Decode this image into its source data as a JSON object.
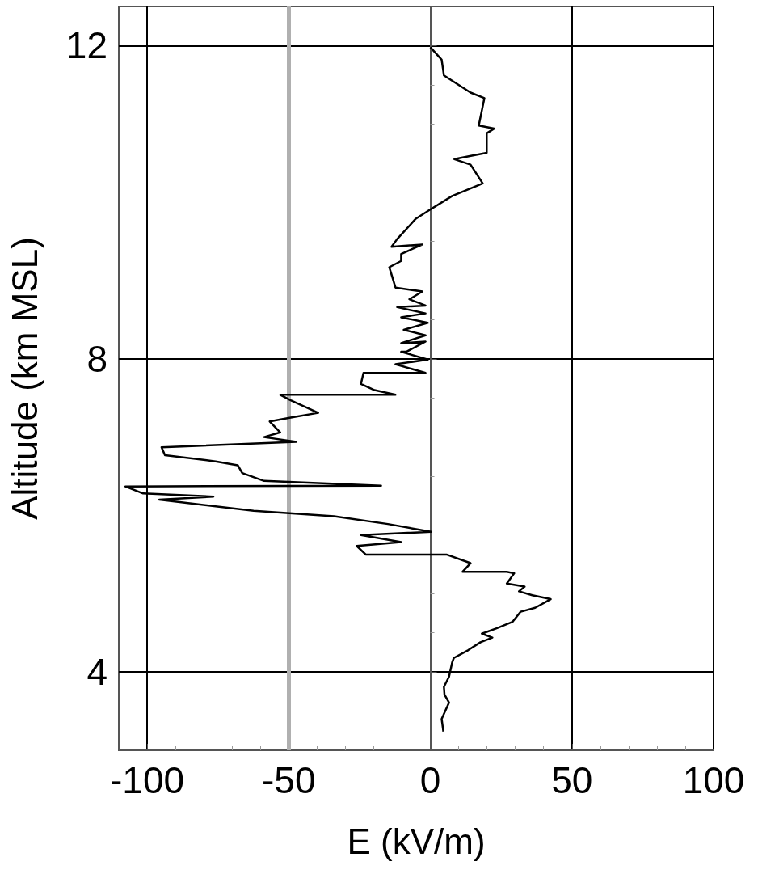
{
  "chart_data": {
    "type": "line",
    "xlabel": "E (kV/m)",
    "ylabel": "Altitude (km MSL)",
    "xlim": [
      -110,
      100
    ],
    "xticks": [
      -100,
      -50,
      0,
      50,
      100
    ],
    "ylim": [
      3,
      12.5
    ],
    "yticks": [
      4,
      8,
      12
    ],
    "grid": true,
    "marker": "none",
    "line_style": "solid",
    "ref_lines": [
      {
        "axis": "x",
        "value": -50,
        "color": "#b0b0b0"
      }
    ],
    "series": [
      {
        "color": "#000000",
        "x": [
          4.6,
          4,
          6.6,
          5,
          4.8,
          6.6,
          7.7,
          8.3,
          13.4,
          17.7,
          21.9,
          18.2,
          23.6,
          29,
          31.9,
          37,
          42.5,
          36,
          31.3,
          33.3,
          27,
          29.6,
          27,
          11.4,
          14.2,
          5.7,
          -22.8,
          -26,
          -10.3,
          -24.5,
          0.3,
          -15,
          -34,
          -62.4,
          -95.7,
          -76.6,
          -101.4,
          -107.7,
          -17.4,
          -58.7,
          -66.4,
          -68,
          -75.8,
          -93.7,
          -94.9,
          -47.3,
          -58.7,
          -53,
          -56.7,
          -49.3,
          -39.6,
          -49.3,
          -53,
          -12.3,
          -19.7,
          -24.5,
          -23.6,
          -1.7,
          -12.3,
          -0.9,
          -10.3,
          -8.5,
          -1.7,
          -10.3,
          -1.7,
          -9.4,
          -0.9,
          -10.3,
          -1.7,
          -11.7,
          -1.7,
          -7.4,
          -2.8,
          -12.3,
          -14.5,
          -10.3,
          -10.3,
          -2.8,
          -13.7,
          -11.7,
          -5.1,
          -0.3,
          7.7,
          18.5,
          14.2,
          8.5,
          15.4,
          19.9,
          19.9,
          22.5,
          17.1,
          19.1,
          14.2,
          4.8,
          4,
          0
        ],
        "values": [
          3.24,
          3.4,
          3.61,
          3.71,
          3.81,
          3.94,
          4.12,
          4.18,
          4.28,
          4.38,
          4.44,
          4.49,
          4.56,
          4.64,
          4.77,
          4.82,
          4.93,
          4.98,
          5.03,
          5.09,
          5.13,
          5.26,
          5.28,
          5.28,
          5.39,
          5.5,
          5.5,
          5.61,
          5.66,
          5.75,
          5.79,
          5.89,
          5.99,
          6.06,
          6.2,
          6.24,
          6.28,
          6.37,
          6.38,
          6.44,
          6.54,
          6.64,
          6.69,
          6.77,
          6.87,
          6.94,
          7.0,
          7.06,
          7.2,
          7.25,
          7.31,
          7.47,
          7.54,
          7.54,
          7.6,
          7.68,
          7.82,
          7.82,
          7.93,
          7.99,
          8.09,
          8.09,
          8.22,
          8.2,
          8.3,
          8.37,
          8.46,
          8.53,
          8.58,
          8.66,
          8.68,
          8.76,
          8.86,
          8.91,
          9.17,
          9.25,
          9.34,
          9.46,
          9.43,
          9.53,
          9.79,
          9.9,
          10.08,
          10.24,
          10.48,
          10.55,
          10.6,
          10.63,
          10.88,
          10.94,
          10.98,
          11.33,
          11.4,
          11.62,
          11.82,
          11.98
        ]
      }
    ]
  }
}
